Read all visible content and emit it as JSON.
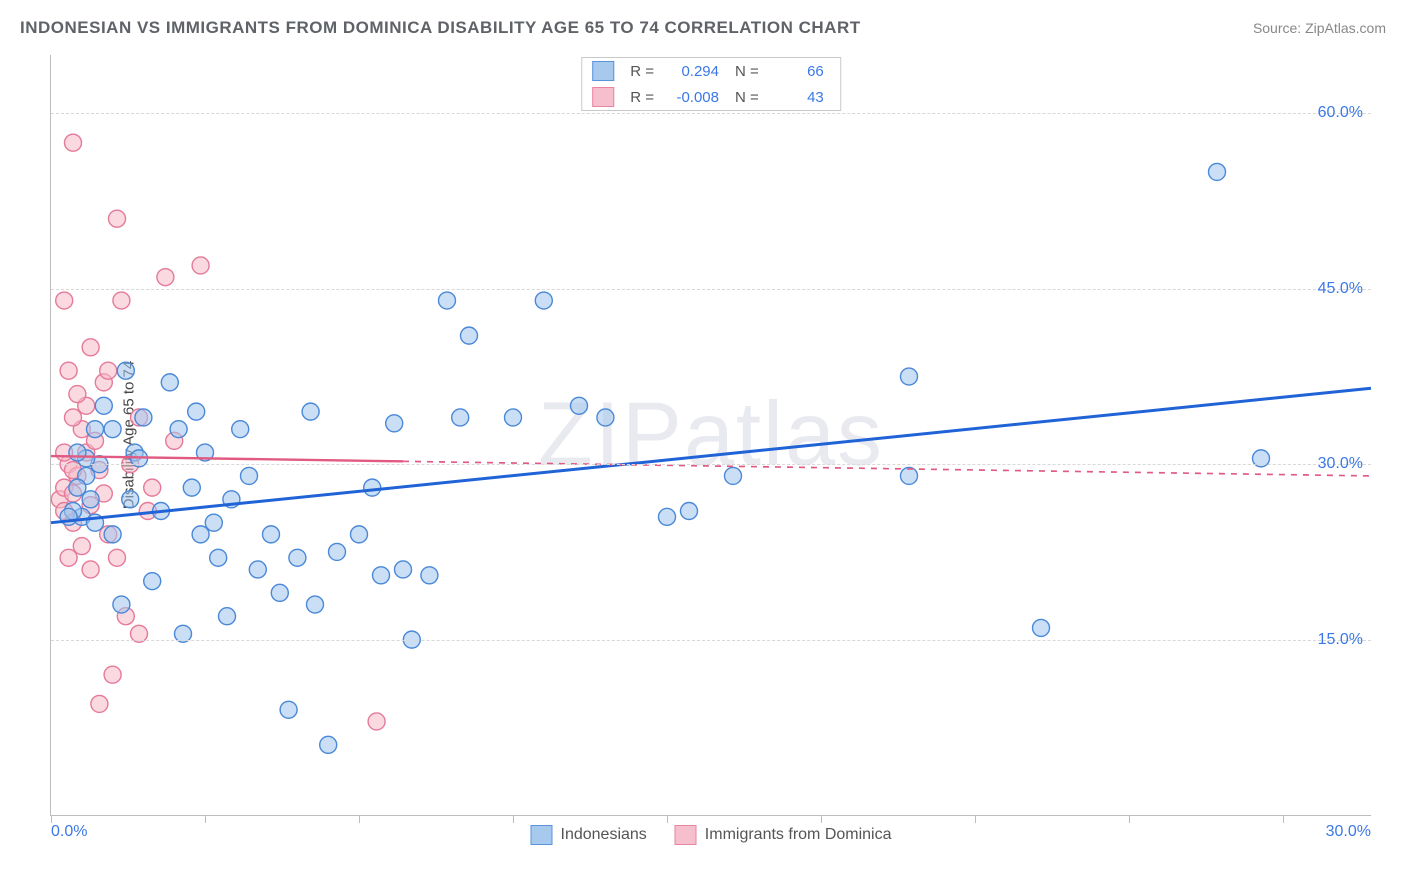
{
  "title": "INDONESIAN VS IMMIGRANTS FROM DOMINICA DISABILITY AGE 65 TO 74 CORRELATION CHART",
  "source": "Source: ZipAtlas.com",
  "watermark": "ZIPatlas",
  "y_axis_label": "Disability Age 65 to 74",
  "chart": {
    "type": "scatter",
    "xlim": [
      0,
      30
    ],
    "ylim": [
      0,
      65
    ],
    "x_ticks": [
      0,
      3.5,
      7,
      10.5,
      14,
      17.5,
      21,
      24.5,
      28
    ],
    "x_tick_labels_shown": {
      "0": "0.0%",
      "30": "30.0%"
    },
    "y_gridlines": [
      15,
      30,
      45,
      60
    ],
    "y_tick_labels": {
      "15": "15.0%",
      "30": "30.0%",
      "45": "45.0%",
      "60": "60.0%"
    },
    "background_color": "#ffffff",
    "grid_color": "#d8d8d8",
    "axis_color": "#bdbdbd",
    "tick_label_color": "#3b78e7",
    "marker_radius": 8.5,
    "marker_stroke_width": 1.4,
    "series": [
      {
        "name": "Indonesians",
        "fill": "#9ec4ed",
        "fill_opacity": 0.55,
        "stroke": "#4a88d8",
        "R": "0.294",
        "N": "66",
        "regression": {
          "x0": 0,
          "y0": 25.0,
          "x1": 30,
          "y1": 36.5,
          "solid_until_x": 30,
          "color": "#1f63d6",
          "width": 3
        },
        "points": [
          [
            0.7,
            25.5
          ],
          [
            0.5,
            26
          ],
          [
            0.9,
            27
          ],
          [
            1.0,
            25
          ],
          [
            0.8,
            29
          ],
          [
            1.1,
            30
          ],
          [
            0.6,
            28
          ],
          [
            0.4,
            25.5
          ],
          [
            1.4,
            33
          ],
          [
            1.6,
            18
          ],
          [
            1.7,
            38
          ],
          [
            1.9,
            31
          ],
          [
            2.1,
            34
          ],
          [
            2.3,
            20
          ],
          [
            2.5,
            26
          ],
          [
            2.7,
            37
          ],
          [
            2.9,
            33
          ],
          [
            3.0,
            15.5
          ],
          [
            3.2,
            28
          ],
          [
            3.4,
            24
          ],
          [
            3.5,
            31
          ],
          [
            3.7,
            25
          ],
          [
            3.8,
            22
          ],
          [
            4.0,
            17
          ],
          [
            4.3,
            33
          ],
          [
            4.5,
            29
          ],
          [
            4.7,
            21
          ],
          [
            5.0,
            24
          ],
          [
            5.2,
            19
          ],
          [
            5.4,
            9
          ],
          [
            5.6,
            22
          ],
          [
            5.9,
            34.5
          ],
          [
            6.0,
            18
          ],
          [
            6.3,
            6
          ],
          [
            6.5,
            22.5
          ],
          [
            7.0,
            24
          ],
          [
            7.3,
            28
          ],
          [
            7.5,
            20.5
          ],
          [
            7.8,
            33.5
          ],
          [
            8.0,
            21
          ],
          [
            8.2,
            15
          ],
          [
            8.6,
            20.5
          ],
          [
            9.0,
            44
          ],
          [
            9.3,
            34
          ],
          [
            9.5,
            41
          ],
          [
            10.5,
            34
          ],
          [
            11.2,
            44
          ],
          [
            12.0,
            35
          ],
          [
            12.6,
            34
          ],
          [
            14.0,
            25.5
          ],
          [
            14.5,
            26
          ],
          [
            15.5,
            29
          ],
          [
            19.5,
            29
          ],
          [
            19.5,
            37.5
          ],
          [
            22.5,
            16
          ],
          [
            26.5,
            55
          ],
          [
            27.5,
            30.5
          ],
          [
            1.0,
            33
          ],
          [
            1.2,
            35
          ],
          [
            0.8,
            30.5
          ],
          [
            0.6,
            31
          ],
          [
            1.4,
            24
          ],
          [
            1.8,
            27
          ],
          [
            2.0,
            30.5
          ],
          [
            3.3,
            34.5
          ],
          [
            4.1,
            27
          ]
        ]
      },
      {
        "name": "Immigrants from Dominica",
        "fill": "#f6b9c8",
        "fill_opacity": 0.55,
        "stroke": "#e57a9a",
        "R": "-0.008",
        "N": "43",
        "regression": {
          "x0": 0,
          "y0": 30.7,
          "x1": 30,
          "y1": 29.0,
          "solid_until_x": 8,
          "color": "#e05a82",
          "width": 2.4
        },
        "points": [
          [
            0.2,
            27
          ],
          [
            0.3,
            28
          ],
          [
            0.4,
            30
          ],
          [
            0.5,
            27.5
          ],
          [
            0.3,
            26
          ],
          [
            0.5,
            25
          ],
          [
            0.7,
            23
          ],
          [
            0.4,
            22
          ],
          [
            0.6,
            29
          ],
          [
            0.8,
            31
          ],
          [
            0.7,
            33
          ],
          [
            0.5,
            34
          ],
          [
            0.8,
            35
          ],
          [
            0.6,
            36
          ],
          [
            0.4,
            38
          ],
          [
            0.9,
            40
          ],
          [
            1.0,
            32
          ],
          [
            1.1,
            29.5
          ],
          [
            1.2,
            37
          ],
          [
            1.3,
            24
          ],
          [
            1.5,
            22
          ],
          [
            1.6,
            44
          ],
          [
            1.8,
            30
          ],
          [
            0.3,
            44
          ],
          [
            0.5,
            57.5
          ],
          [
            1.3,
            38
          ],
          [
            1.5,
            51
          ],
          [
            2.0,
            34
          ],
          [
            2.2,
            26
          ],
          [
            2.3,
            28
          ],
          [
            2.6,
            46
          ],
          [
            2.8,
            32
          ],
          [
            3.4,
            47
          ],
          [
            1.7,
            17
          ],
          [
            2.0,
            15.5
          ],
          [
            0.9,
            21
          ],
          [
            1.4,
            12
          ],
          [
            7.4,
            8
          ],
          [
            1.1,
            9.5
          ],
          [
            0.3,
            31
          ],
          [
            0.5,
            29.5
          ],
          [
            0.9,
            26.5
          ],
          [
            1.2,
            27.5
          ]
        ]
      }
    ]
  },
  "legend_bottom": [
    {
      "label": "Indonesians",
      "fill": "#9ec4ed",
      "stroke": "#4a88d8"
    },
    {
      "label": "Immigrants from Dominica",
      "fill": "#f6b9c8",
      "stroke": "#e57a9a"
    }
  ]
}
